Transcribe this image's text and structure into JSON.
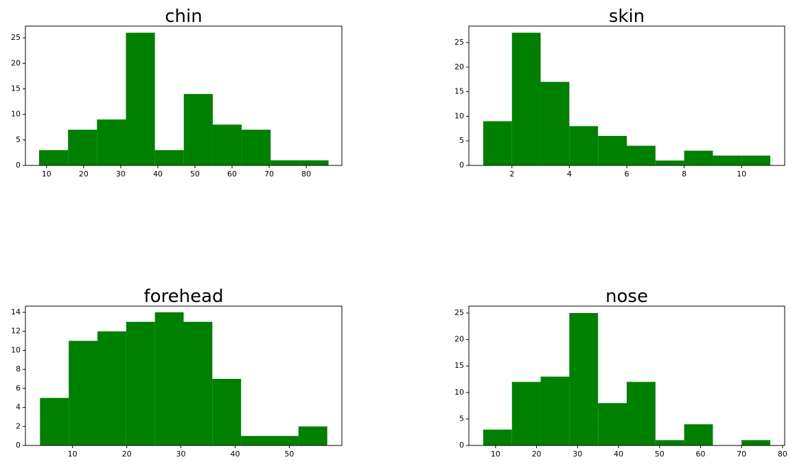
{
  "chart_data": [
    {
      "type": "histogram",
      "title": "chin",
      "color": "#008000",
      "bins": [
        8,
        15.8,
        23.6,
        31.4,
        39.2,
        47,
        54.8,
        62.6,
        70.4,
        78.2,
        86
      ],
      "counts": [
        3,
        7,
        9,
        26,
        3,
        14,
        8,
        7,
        1,
        1
      ],
      "xlim": [
        4.3,
        89.6
      ],
      "xticks": [
        10,
        20,
        30,
        40,
        50,
        60,
        70,
        80
      ],
      "ylim": [
        0,
        27.3
      ],
      "yticks": [
        0,
        5,
        10,
        15,
        20,
        25
      ]
    },
    {
      "type": "histogram",
      "title": "skin",
      "color": "#008000",
      "bins": [
        1,
        2,
        3,
        4,
        5,
        6,
        7,
        8,
        9,
        10,
        11
      ],
      "counts": [
        9,
        27,
        17,
        8,
        6,
        4,
        1,
        3,
        2,
        2
      ],
      "xlim": [
        0.5,
        11.5
      ],
      "xticks": [
        2,
        4,
        6,
        8,
        10
      ],
      "ylim": [
        0,
        28.35
      ],
      "yticks": [
        0,
        5,
        10,
        15,
        20,
        25
      ]
    },
    {
      "type": "histogram",
      "title": "forehead",
      "color": "#008000",
      "bins": [
        4,
        9.3,
        14.6,
        19.9,
        25.2,
        30.5,
        35.8,
        41.1,
        46.4,
        51.7,
        57
      ],
      "counts": [
        5,
        11,
        12,
        13,
        14,
        13,
        7,
        1,
        1,
        2
      ],
      "xlim": [
        1.3,
        59.7
      ],
      "xticks": [
        10,
        20,
        30,
        40,
        50
      ],
      "ylim": [
        0,
        14.65
      ],
      "yticks": [
        0,
        2,
        4,
        6,
        8,
        10,
        12,
        14
      ]
    },
    {
      "type": "histogram",
      "title": "nose",
      "color": "#008000",
      "bins": [
        7,
        14,
        21,
        28,
        35,
        42,
        49,
        56,
        63,
        70,
        77
      ],
      "counts": [
        3,
        12,
        13,
        25,
        8,
        12,
        1,
        4,
        0,
        1
      ],
      "xlim": [
        3.5,
        80.5
      ],
      "xticks": [
        10,
        20,
        30,
        40,
        50,
        60,
        70,
        80
      ],
      "ylim": [
        0,
        26.3
      ],
      "yticks": [
        0,
        5,
        10,
        15,
        20,
        25
      ]
    }
  ]
}
